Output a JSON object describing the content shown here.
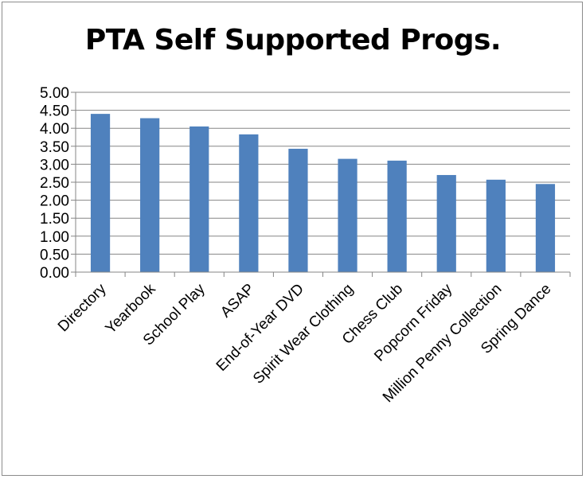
{
  "chart_data": {
    "type": "bar",
    "title": "PTA Self Supported Progs.",
    "xlabel": "",
    "ylabel": "",
    "categories": [
      "Directory",
      "Yearbook",
      "School Play",
      "ASAP",
      "End-of-Year DVD",
      "Spirit Wear Clothing",
      "Chess Club",
      "Popcorn Friday",
      "Million Penny Collection",
      "Spring Dance"
    ],
    "values": [
      4.4,
      4.28,
      4.05,
      3.83,
      3.43,
      3.15,
      3.1,
      2.7,
      2.57,
      2.45
    ],
    "ylim": [
      0,
      5
    ],
    "yticks": [
      "0.00",
      "0.50",
      "1.00",
      "1.50",
      "2.00",
      "2.50",
      "3.00",
      "3.50",
      "4.00",
      "4.50",
      "5.00"
    ],
    "grid": true,
    "legend": "none",
    "bar_color": "#4f81bd",
    "grid_color": "#868686"
  }
}
